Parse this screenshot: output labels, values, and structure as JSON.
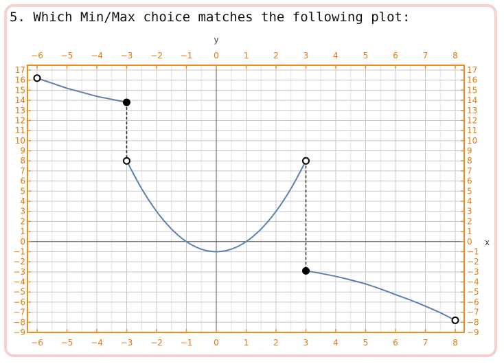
{
  "question": "5. Which Min/Max choice matches the following plot:",
  "colors": {
    "frame": "#f08c1e",
    "tick_text": "#e07c0e",
    "curve": "#5b7fae",
    "grid": "#c8c8c8",
    "card_border": "#f6cfcf"
  },
  "chart_data": {
    "type": "line",
    "xlabel": "x",
    "ylabel": "y",
    "xlim": [
      -6,
      8
    ],
    "ylim": [
      -9,
      17
    ],
    "x_ticks": [
      -6,
      -5,
      -4,
      -3,
      -2,
      -1,
      0,
      1,
      2,
      3,
      4,
      5,
      6,
      7,
      8
    ],
    "y_ticks": [
      -9,
      -8,
      -7,
      -6,
      -5,
      -4,
      -3,
      -2,
      -1,
      0,
      1,
      2,
      3,
      4,
      5,
      6,
      7,
      8,
      9,
      10,
      11,
      12,
      13,
      14,
      15,
      16,
      17
    ],
    "grid": true,
    "pieces": [
      {
        "x": [
          -6,
          -5.5,
          -5,
          -4.5,
          -4,
          -3.5,
          -3
        ],
        "y": [
          16.2,
          15.7,
          15.2,
          14.8,
          14.4,
          14.1,
          13.8
        ]
      },
      {
        "x": [
          -3,
          -2.5,
          -2,
          -1.5,
          -1,
          -0.5,
          0,
          0.5,
          1,
          1.5,
          2,
          2.5,
          3
        ],
        "y": [
          8,
          5.25,
          3,
          1.25,
          0,
          -0.75,
          -1,
          -0.75,
          0,
          1.25,
          3,
          5.25,
          8
        ]
      },
      {
        "x": [
          3,
          3.5,
          4,
          4.5,
          5,
          5.5,
          6,
          6.5,
          7,
          7.5,
          8
        ],
        "y": [
          -2.9,
          -3.15,
          -3.45,
          -3.8,
          -4.2,
          -4.7,
          -5.25,
          -5.8,
          -6.4,
          -7.05,
          -7.8
        ]
      }
    ],
    "dashed_jumps": [
      {
        "x": -3,
        "from": 13.8,
        "to": 8
      },
      {
        "x": 3,
        "from": 8,
        "to": -2.9
      }
    ],
    "filled_points": [
      {
        "x": -3,
        "y": 13.8
      },
      {
        "x": 3,
        "y": -2.9
      }
    ],
    "open_points": [
      {
        "x": -6,
        "y": 16.2
      },
      {
        "x": -3,
        "y": 8
      },
      {
        "x": 3,
        "y": 8
      },
      {
        "x": 8,
        "y": -7.8
      }
    ]
  }
}
